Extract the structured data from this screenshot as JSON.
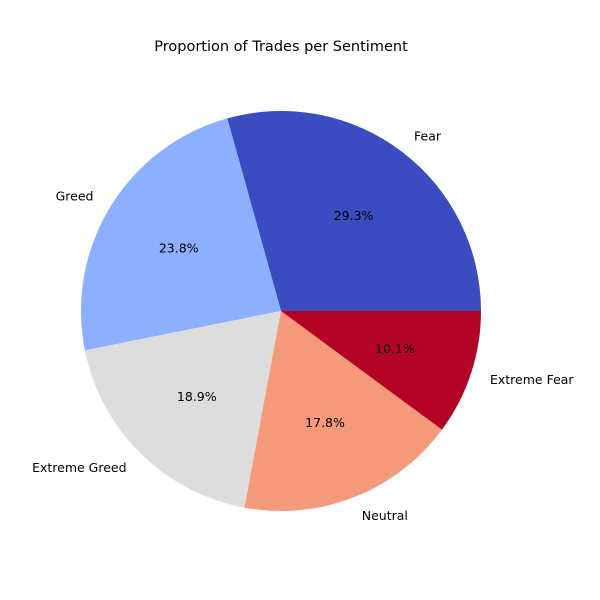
{
  "chart_data": {
    "type": "pie",
    "title": "Proportion of Trades per Sentiment",
    "categories": [
      "Fear",
      "Greed",
      "Extreme Greed",
      "Neutral",
      "Extreme Fear"
    ],
    "values": [
      29.3,
      23.8,
      18.9,
      17.8,
      10.1
    ],
    "value_labels": [
      "29.3%",
      "23.8%",
      "18.9%",
      "17.8%",
      "10.1%"
    ],
    "colors": [
      "#3b4cc0",
      "#8db0fe",
      "#dddddd",
      "#f49a7b",
      "#b40426"
    ],
    "start_angle_deg": 0,
    "direction": "counterclockwise",
    "legend": "none"
  }
}
